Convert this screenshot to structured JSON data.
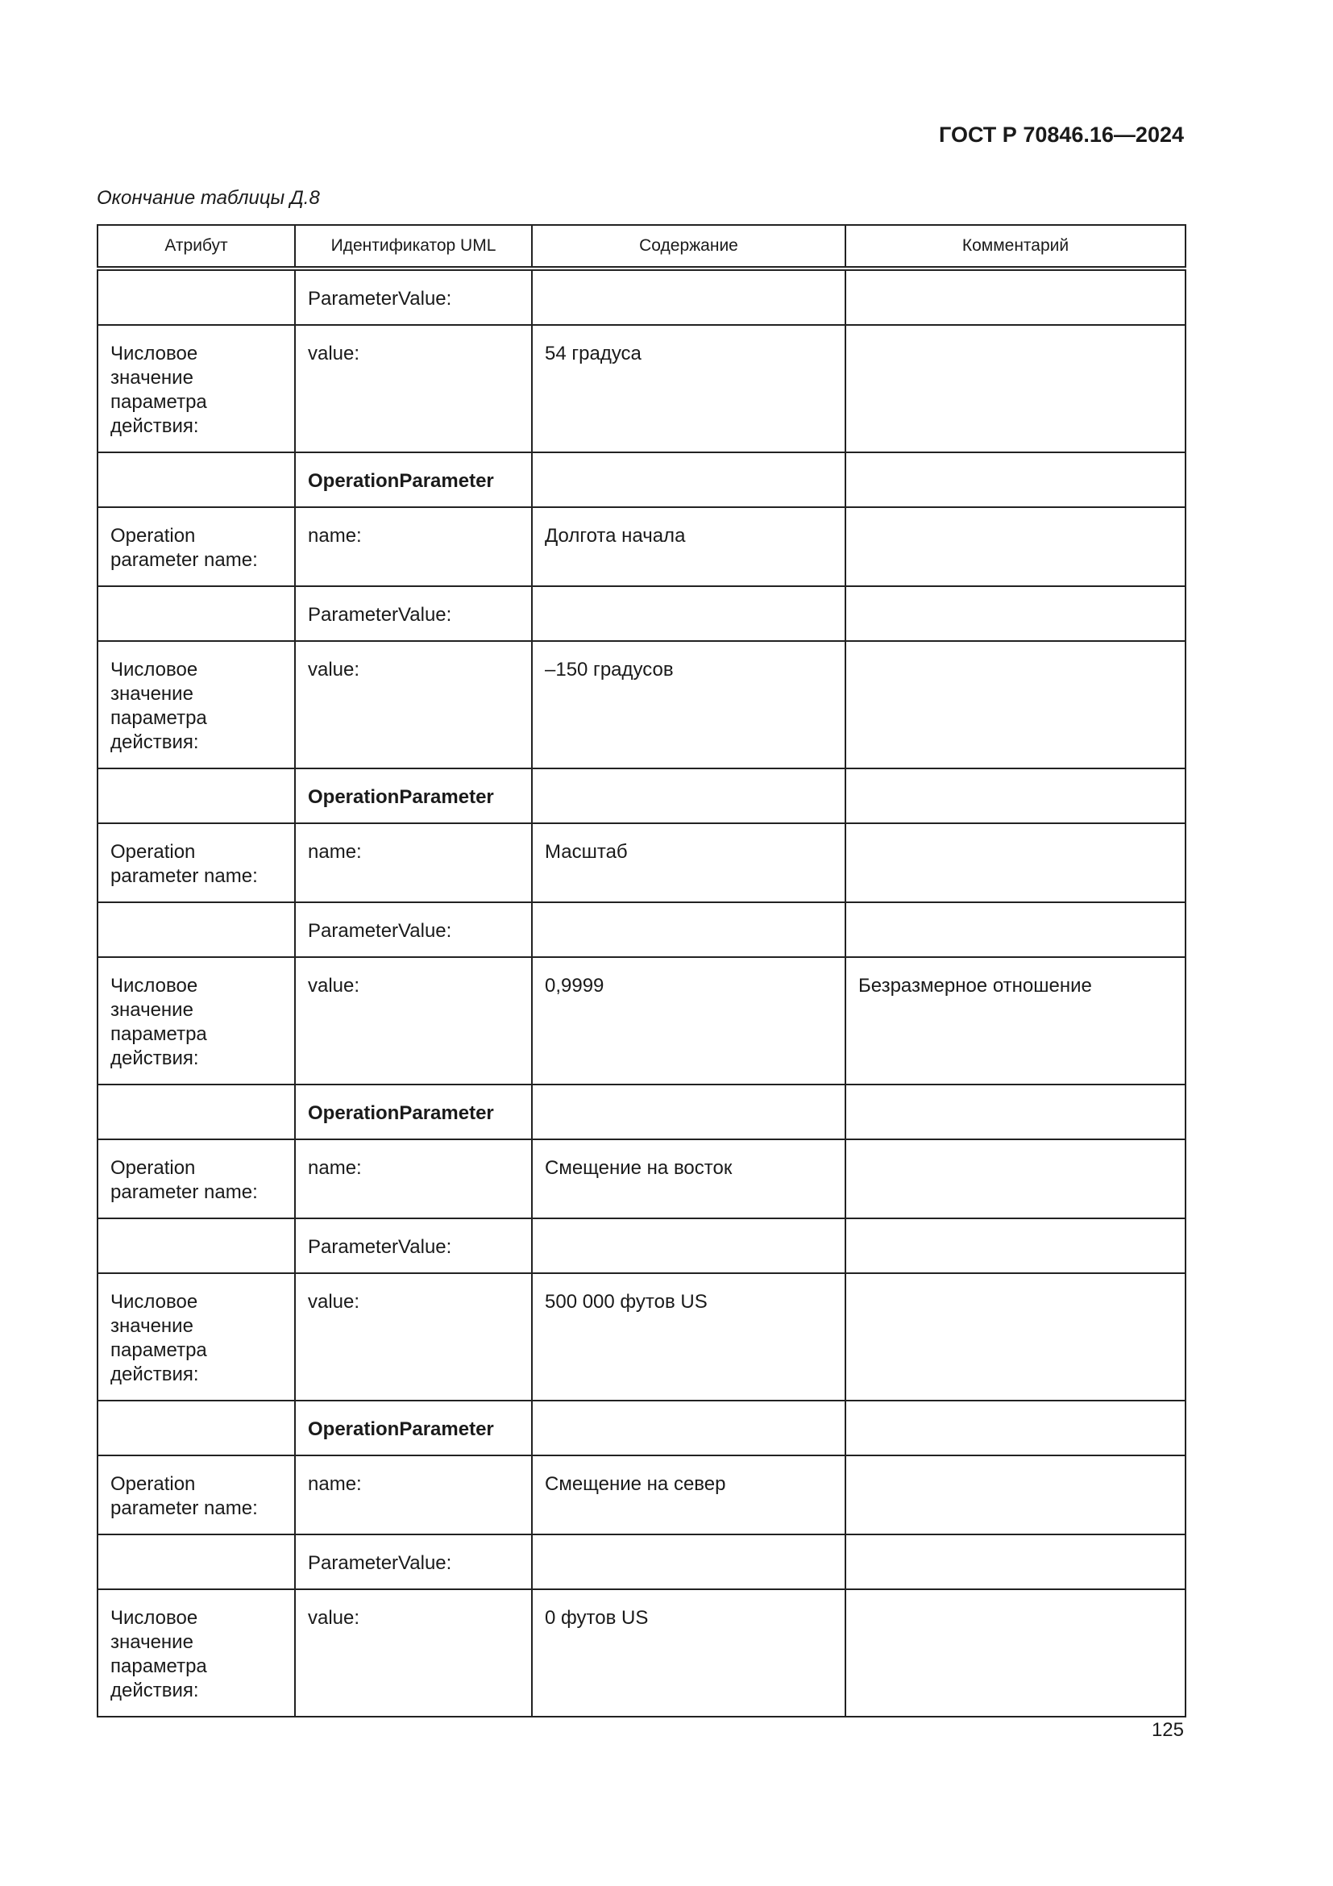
{
  "header": {
    "doc_code": "ГОСТ Р 70846.16—2024"
  },
  "caption": "Окончание таблицы Д.8",
  "table": {
    "columns": [
      "Атрибут",
      "Идентификатор UML",
      "Содержание",
      "Комментарий"
    ],
    "rows": [
      {
        "type": "short",
        "cells": [
          "",
          "ParameterValue:",
          "",
          ""
        ]
      },
      {
        "type": "tall",
        "cells": [
          "Числовое значение параметра действия:",
          "value:",
          "54 градуса",
          ""
        ]
      },
      {
        "type": "short",
        "bold": true,
        "cells": [
          "",
          "OperationParameter",
          "",
          ""
        ]
      },
      {
        "type": "mid",
        "cells": [
          "Operation parameter name:",
          "name:",
          "Долгота начала",
          ""
        ]
      },
      {
        "type": "short",
        "cells": [
          "",
          "ParameterValue:",
          "",
          ""
        ]
      },
      {
        "type": "tall",
        "cells": [
          "Числовое значение параметра действия:",
          "value:",
          "–150 градусов",
          ""
        ]
      },
      {
        "type": "short",
        "bold": true,
        "cells": [
          "",
          "OperationParameter",
          "",
          ""
        ]
      },
      {
        "type": "mid",
        "cells": [
          "Operation parameter name:",
          "name:",
          "Масштаб",
          ""
        ]
      },
      {
        "type": "short",
        "cells": [
          "",
          "ParameterValue:",
          "",
          ""
        ]
      },
      {
        "type": "tall",
        "cells": [
          "Числовое значение параметра действия:",
          "value:",
          "0,9999",
          "Безразмерное отношение"
        ]
      },
      {
        "type": "short",
        "bold": true,
        "cells": [
          "",
          "OperationParameter",
          "",
          ""
        ]
      },
      {
        "type": "mid",
        "cells": [
          "Operation parameter name:",
          "name:",
          "Смещение на восток",
          ""
        ]
      },
      {
        "type": "short",
        "cells": [
          "",
          "ParameterValue:",
          "",
          ""
        ]
      },
      {
        "type": "tall",
        "cells": [
          "Числовое значение параметра действия:",
          "value:",
          "500 000 футов US",
          ""
        ]
      },
      {
        "type": "short",
        "bold": true,
        "cells": [
          "",
          "OperationParameter",
          "",
          ""
        ]
      },
      {
        "type": "mid",
        "cells": [
          "Operation parameter name:",
          "name:",
          "Смещение на север",
          ""
        ]
      },
      {
        "type": "short",
        "cells": [
          "",
          "ParameterValue:",
          "",
          ""
        ]
      },
      {
        "type": "tall",
        "cells": [
          "Числовое значение параметра действия:",
          "value:",
          "0 футов US",
          ""
        ]
      }
    ]
  },
  "page_number": "125"
}
